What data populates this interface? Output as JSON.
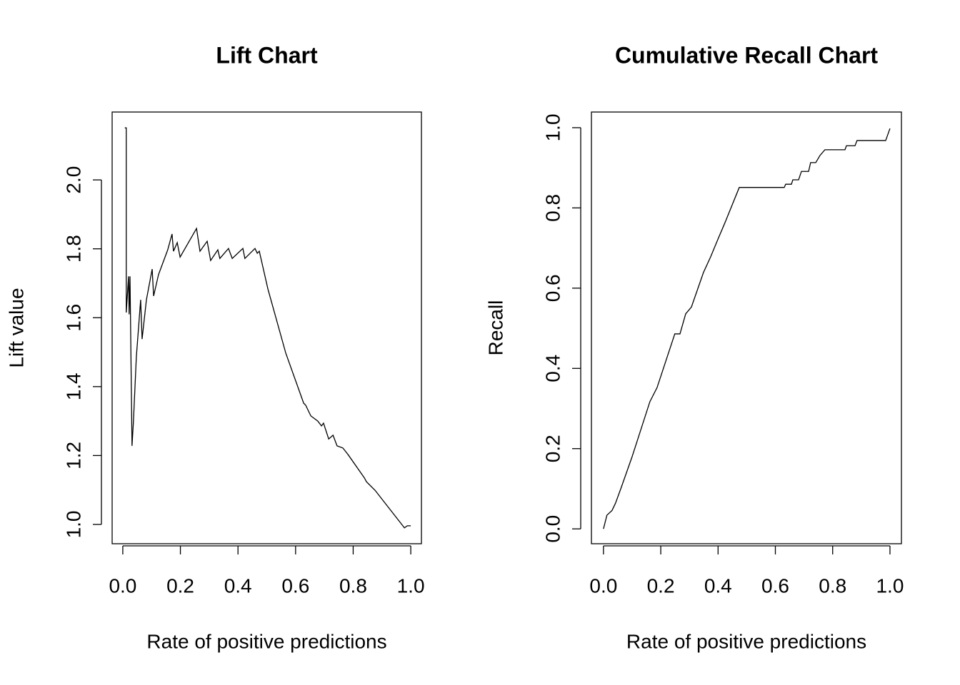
{
  "chart_data": [
    {
      "type": "line",
      "title": "Lift Chart",
      "x_label": "Rate of positive predictions",
      "y_label": "Lift value",
      "xlim": [
        -0.037,
        1.037
      ],
      "ylim": [
        0.944,
        2.197
      ],
      "xticks": [
        {
          "value": 0,
          "label": "0.0"
        },
        0.2,
        0.4,
        0.6,
        0.8,
        {
          "value": 1,
          "label": "1.0"
        }
      ],
      "yticks": [
        {
          "value": 1,
          "label": "1.0"
        },
        1.2,
        1.4,
        1.6,
        1.8,
        {
          "value": 2,
          "label": "2.0"
        }
      ],
      "series": [
        {
          "color": "#000000",
          "x": [
            0.007,
            0.012,
            0.012,
            0.02,
            0.022,
            0.025,
            0.032,
            0.037,
            0.047,
            0.062,
            0.067,
            0.082,
            0.102,
            0.107,
            0.124,
            0.156,
            0.171,
            0.176,
            0.189,
            0.199,
            0.256,
            0.268,
            0.293,
            0.305,
            0.33,
            0.337,
            0.367,
            0.38,
            0.417,
            0.424,
            0.459,
            0.467,
            0.474,
            0.504,
            0.566,
            0.628,
            0.635,
            0.653,
            0.677,
            0.69,
            0.697,
            0.715,
            0.73,
            0.744,
            0.764,
            0.782,
            0.839,
            0.846,
            0.876,
            0.978,
            0.988,
            1.0
          ],
          "values": [
            2.151,
            2.151,
            1.615,
            1.72,
            1.61,
            1.72,
            1.228,
            1.3,
            1.486,
            1.652,
            1.538,
            1.652,
            1.741,
            1.663,
            1.725,
            1.797,
            1.843,
            1.793,
            1.818,
            1.776,
            1.859,
            1.793,
            1.822,
            1.766,
            1.797,
            1.772,
            1.801,
            1.772,
            1.801,
            1.772,
            1.801,
            1.787,
            1.793,
            1.683,
            1.497,
            1.352,
            1.346,
            1.315,
            1.3,
            1.286,
            1.294,
            1.248,
            1.259,
            1.228,
            1.222,
            1.203,
            1.135,
            1.124,
            1.099,
            0.99,
            0.996,
            0.996
          ]
        }
      ]
    },
    {
      "type": "line",
      "title": "Cumulative Recall Chart",
      "x_label": "Rate of positive predictions",
      "y_label": "Recall",
      "xlim": [
        -0.042,
        1.04
      ],
      "ylim": [
        -0.037,
        1.039
      ],
      "xticks": [
        {
          "value": 0,
          "label": "0.0"
        },
        0.2,
        0.4,
        0.6,
        0.8,
        {
          "value": 1,
          "label": "1.0"
        }
      ],
      "yticks": [
        {
          "value": 0,
          "label": "0.0"
        },
        0.2,
        0.4,
        0.6,
        0.8,
        {
          "value": 1,
          "label": "1.0"
        }
      ],
      "series": [
        {
          "color": "#000000",
          "x": [
            0,
            0.012,
            0.03,
            0.042,
            0.062,
            0.1,
            0.162,
            0.187,
            0.249,
            0.267,
            0.287,
            0.307,
            0.349,
            0.374,
            0.399,
            0.424,
            0.474,
            0.631,
            0.636,
            0.656,
            0.661,
            0.681,
            0.691,
            0.716,
            0.723,
            0.741,
            0.756,
            0.773,
            0.843,
            0.848,
            0.878,
            0.885,
            0.985,
            1.0
          ],
          "values": [
            0,
            0.034,
            0.046,
            0.064,
            0.103,
            0.18,
            0.317,
            0.352,
            0.486,
            0.486,
            0.536,
            0.553,
            0.639,
            0.678,
            0.721,
            0.763,
            0.851,
            0.851,
            0.859,
            0.859,
            0.87,
            0.87,
            0.891,
            0.891,
            0.913,
            0.913,
            0.931,
            0.945,
            0.945,
            0.955,
            0.955,
            0.968,
            0.968,
            0.998
          ]
        }
      ]
    }
  ]
}
